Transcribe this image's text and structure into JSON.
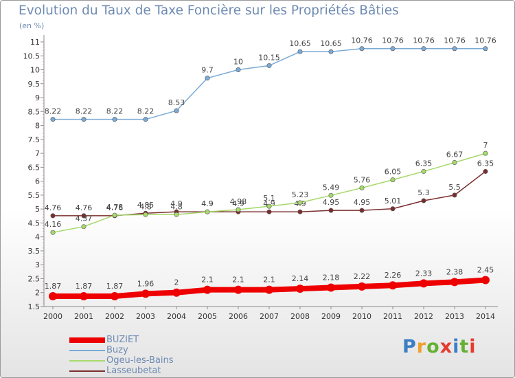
{
  "title": "Evolution du Taux de Taxe Foncière sur les Propriétés Bâties",
  "unit": "(en %)",
  "logo": {
    "text": "Proxiti",
    "letter_colors": [
      "#3a7fc4",
      "#f0a030",
      "#66b032",
      "#e53c2e",
      "#3a7fc4",
      "#66b032",
      "#e53c2e"
    ]
  },
  "chart_data": {
    "type": "line",
    "title": "Evolution du Taux de Taxe Foncière sur les Propriétés Bâties",
    "ylabel": "(en %)",
    "x": [
      "2000",
      "2001",
      "2002",
      "2003",
      "2004",
      "2005",
      "2006",
      "2007",
      "2008",
      "2009",
      "2010",
      "2011",
      "2012",
      "2013",
      "2014"
    ],
    "ylim": [
      1.5,
      11
    ],
    "yticks": [
      "1.5",
      "2",
      "2.5",
      "3",
      "3.5",
      "4",
      "4.5",
      "5",
      "5.5",
      "6",
      "6.5",
      "7",
      "7.5",
      "8",
      "8.5",
      "9",
      "9.5",
      "10",
      "10.5",
      "11"
    ],
    "grid": false,
    "legend_position": "bottom-left",
    "series": [
      {
        "name": "BUZIET",
        "color": "#ee0000",
        "width": 8,
        "values": [
          1.87,
          1.87,
          1.87,
          1.96,
          2,
          2.1,
          2.1,
          2.1,
          2.14,
          2.18,
          2.22,
          2.26,
          2.33,
          2.38,
          2.45
        ],
        "labels": [
          "1.87",
          "1.87",
          "1.87",
          "1.96",
          "2",
          "2.1",
          "2.1",
          "2.1",
          "2.14",
          "2.18",
          "2.22",
          "2.26",
          "2.33",
          "2.38",
          "2.45"
        ]
      },
      {
        "name": "Buzy",
        "color": "#7aaad6",
        "width": 1.5,
        "values": [
          8.22,
          8.22,
          8.22,
          8.22,
          8.53,
          9.7,
          10,
          10.15,
          10.65,
          10.65,
          10.76,
          10.76,
          10.76,
          10.76,
          10.76
        ],
        "labels": [
          "8.22",
          "8.22",
          "8.22",
          "8.22",
          "8.53",
          "9.7",
          "10",
          "10.15",
          "10.65",
          "10.65",
          "10.76",
          "10.76",
          "10.76",
          "10.76",
          "10.76"
        ]
      },
      {
        "name": "Ogeu-les-Bains",
        "color": "#a6d96a",
        "width": 1.5,
        "values": [
          4.16,
          4.37,
          4.78,
          4.8,
          4.8,
          4.9,
          4.98,
          5.1,
          5.23,
          5.49,
          5.76,
          6.05,
          6.35,
          6.67,
          7
        ],
        "labels": [
          "4.16",
          "4.37",
          "4.78",
          "4.8",
          "4.8",
          "4.9",
          "4.98",
          "5.1",
          "5.23",
          "5.49",
          "5.76",
          "6.05",
          "6.35",
          "6.67",
          "7"
        ]
      },
      {
        "name": "Lasseubetat",
        "color": "#7b2e2e",
        "width": 1.5,
        "values": [
          4.76,
          4.76,
          4.76,
          4.85,
          4.9,
          4.9,
          4.9,
          4.9,
          4.9,
          4.95,
          4.95,
          5.01,
          5.3,
          5.5,
          6.35
        ],
        "labels": [
          "4.76",
          "4.76",
          "4.76",
          "4.85",
          "4.9",
          "4.9",
          "4.9",
          "4.9",
          "4.9",
          "4.95",
          "4.95",
          "5.01",
          "5.3",
          "5.5",
          "6.35"
        ]
      }
    ]
  }
}
